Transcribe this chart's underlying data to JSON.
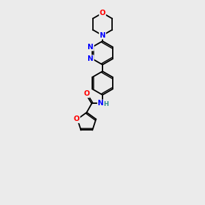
{
  "background_color": "#ebebeb",
  "bond_color": "#000000",
  "atom_colors": {
    "N": "#0000ff",
    "O": "#ff0000",
    "H": "#2f8f8f",
    "C": "#000000"
  },
  "figsize": [
    3.0,
    3.0
  ],
  "dpi": 100
}
